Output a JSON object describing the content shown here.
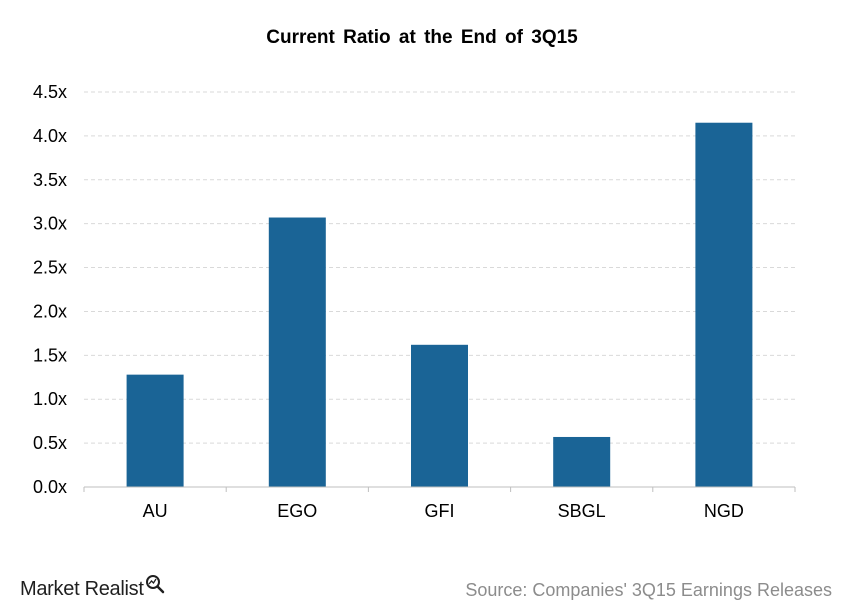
{
  "chart_data": {
    "type": "bar",
    "title": "Current Ratio at the End of 3Q15",
    "categories": [
      "AU",
      "EGO",
      "GFI",
      "SBGL",
      "NGD"
    ],
    "values": [
      1.28,
      3.07,
      1.62,
      0.57,
      4.15
    ],
    "ylim": [
      0,
      4.5
    ],
    "yticks": [
      "0.0x",
      "0.5x",
      "1.0x",
      "1.5x",
      "2.0x",
      "2.5x",
      "3.0x",
      "3.5x",
      "4.0x",
      "4.5x"
    ],
    "ytick_values": [
      0,
      0.5,
      1.0,
      1.5,
      2.0,
      2.5,
      3.0,
      3.5,
      4.0,
      4.5
    ],
    "bar_color": "#1a6496",
    "grid": true,
    "grid_style": "dashed"
  },
  "footer": {
    "brand": "Market Realist",
    "brand_icon": "magnifier-chart-icon",
    "source": "Source: Companies' 3Q15 Earnings Releases"
  }
}
